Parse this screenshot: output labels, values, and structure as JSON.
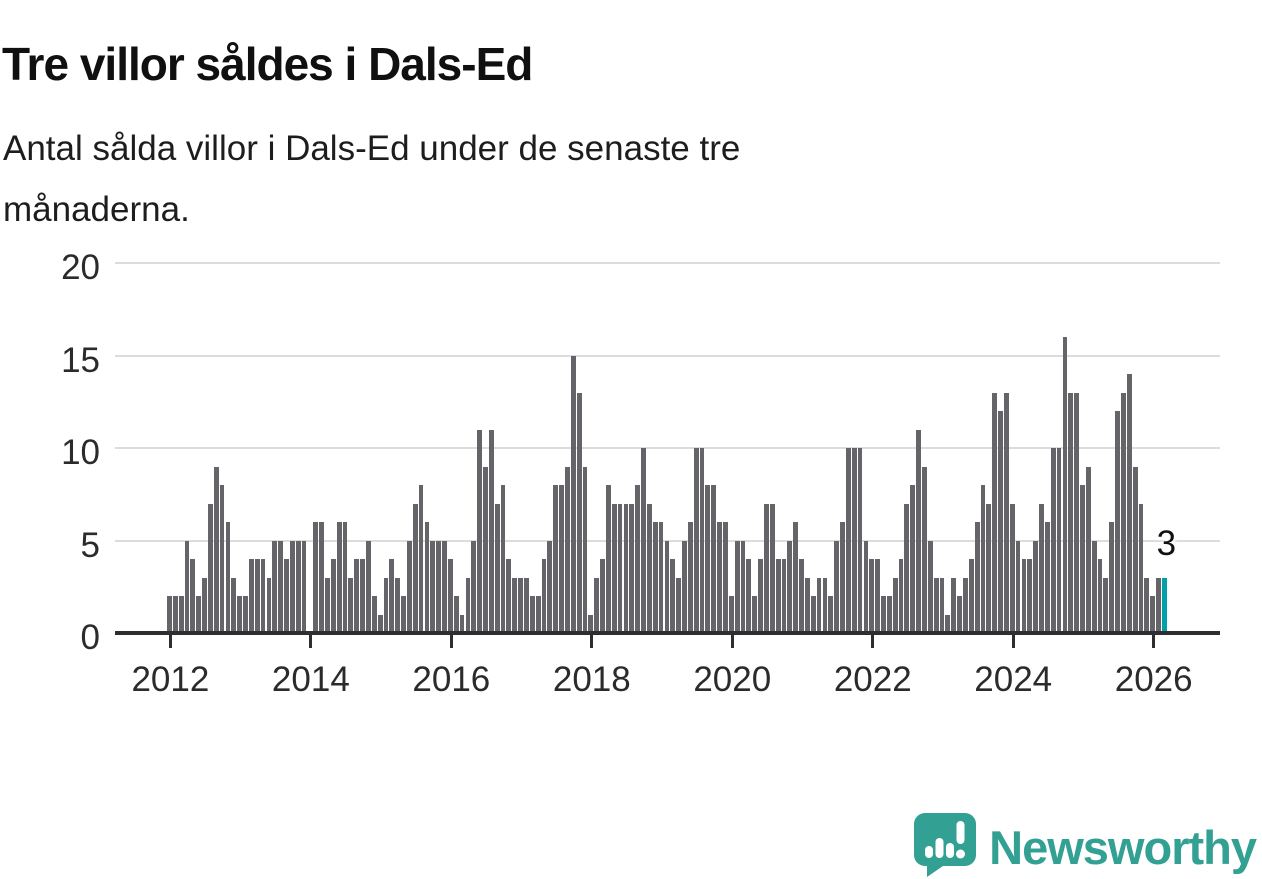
{
  "header": {
    "title": "Tre villor såldes i Dals-Ed"
  },
  "subtitle_lines": [
    "Antal sålda villor i Dals-Ed under de senaste tre",
    "månaderna."
  ],
  "chart_data": {
    "type": "bar",
    "title": "Tre villor såldes i Dals-Ed",
    "xlabel": "",
    "ylabel": "",
    "x_unit": "month",
    "x_start": "2012-01",
    "x_end": "2026-03",
    "ylim": [
      0,
      20
    ],
    "grid": true,
    "yticks": [
      0,
      5,
      10,
      15,
      20
    ],
    "xticks": [
      "2012",
      "2014",
      "2016",
      "2018",
      "2020",
      "2022",
      "2024",
      "2026"
    ],
    "values": [
      2,
      2,
      2,
      5,
      4,
      2,
      3,
      7,
      9,
      8,
      6,
      3,
      2,
      2,
      4,
      4,
      4,
      3,
      5,
      5,
      4,
      5,
      5,
      5,
      0,
      6,
      6,
      3,
      4,
      6,
      6,
      3,
      4,
      4,
      5,
      2,
      1,
      3,
      4,
      3,
      2,
      5,
      7,
      8,
      6,
      5,
      5,
      5,
      4,
      2,
      1,
      3,
      5,
      11,
      9,
      11,
      7,
      8,
      4,
      3,
      3,
      3,
      2,
      2,
      4,
      5,
      8,
      8,
      9,
      15,
      13,
      9,
      1,
      3,
      4,
      8,
      7,
      7,
      7,
      7,
      8,
      10,
      7,
      6,
      6,
      5,
      4,
      3,
      5,
      6,
      10,
      10,
      8,
      8,
      6,
      6,
      2,
      5,
      5,
      4,
      2,
      4,
      7,
      7,
      4,
      4,
      5,
      6,
      4,
      3,
      2,
      3,
      3,
      2,
      5,
      6,
      10,
      10,
      10,
      5,
      4,
      4,
      2,
      2,
      3,
      4,
      7,
      8,
      11,
      9,
      5,
      3,
      3,
      1,
      3,
      2,
      3,
      4,
      6,
      8,
      7,
      13,
      12,
      13,
      7,
      5,
      4,
      4,
      5,
      7,
      6,
      10,
      10,
      16,
      13,
      13,
      8,
      9,
      5,
      4,
      3,
      6,
      12,
      13,
      14,
      9,
      7,
      3,
      2,
      3,
      3
    ],
    "highlight": {
      "index": 170,
      "value": 3,
      "label": "3",
      "color": "#00a1a9"
    },
    "colors": {
      "bar": "#656569",
      "axis": "#2e2e30",
      "grid": "#dcdcdc",
      "text": "#2b2b2b"
    },
    "legend": null
  },
  "footer": {
    "brand": "Newsworthy",
    "brand_color": "#33a094"
  }
}
